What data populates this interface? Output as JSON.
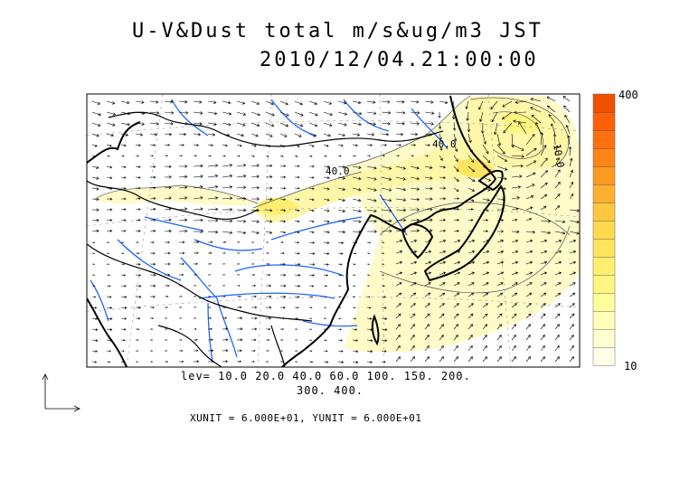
{
  "title": {
    "line1": "U-V&Dust total m/s&ug/m3 JST",
    "line2": "2010/12/04.21:00:00"
  },
  "colorbar": {
    "max_label": "400",
    "min_label": "10",
    "colors": [
      "#ffffe8",
      "#ffffd0",
      "#ffffb8",
      "#ffff9c",
      "#fff680",
      "#ffee70",
      "#ffe460",
      "#ffd850",
      "#ffc640",
      "#ffb030",
      "#ff9a20",
      "#ff8418",
      "#ff7010",
      "#ff6008",
      "#f05000"
    ]
  },
  "contour_levels": {
    "line1": "lev= 10.0 20.0 40.0 60.0 100. 150. 200.",
    "line2": "300. 400."
  },
  "contour_labels": [
    "40.0",
    "40.0",
    "10.0"
  ],
  "vector_units": "XUNIT = 6.000E+01, YUNIT = 6.000E+01",
  "colors": {
    "coastline": "#000000",
    "rivers": "#1e64ff",
    "dust_low": "#fffbc8",
    "dust_mid": "#ffee70"
  },
  "icons": [
    "reference-vector-icon"
  ]
}
